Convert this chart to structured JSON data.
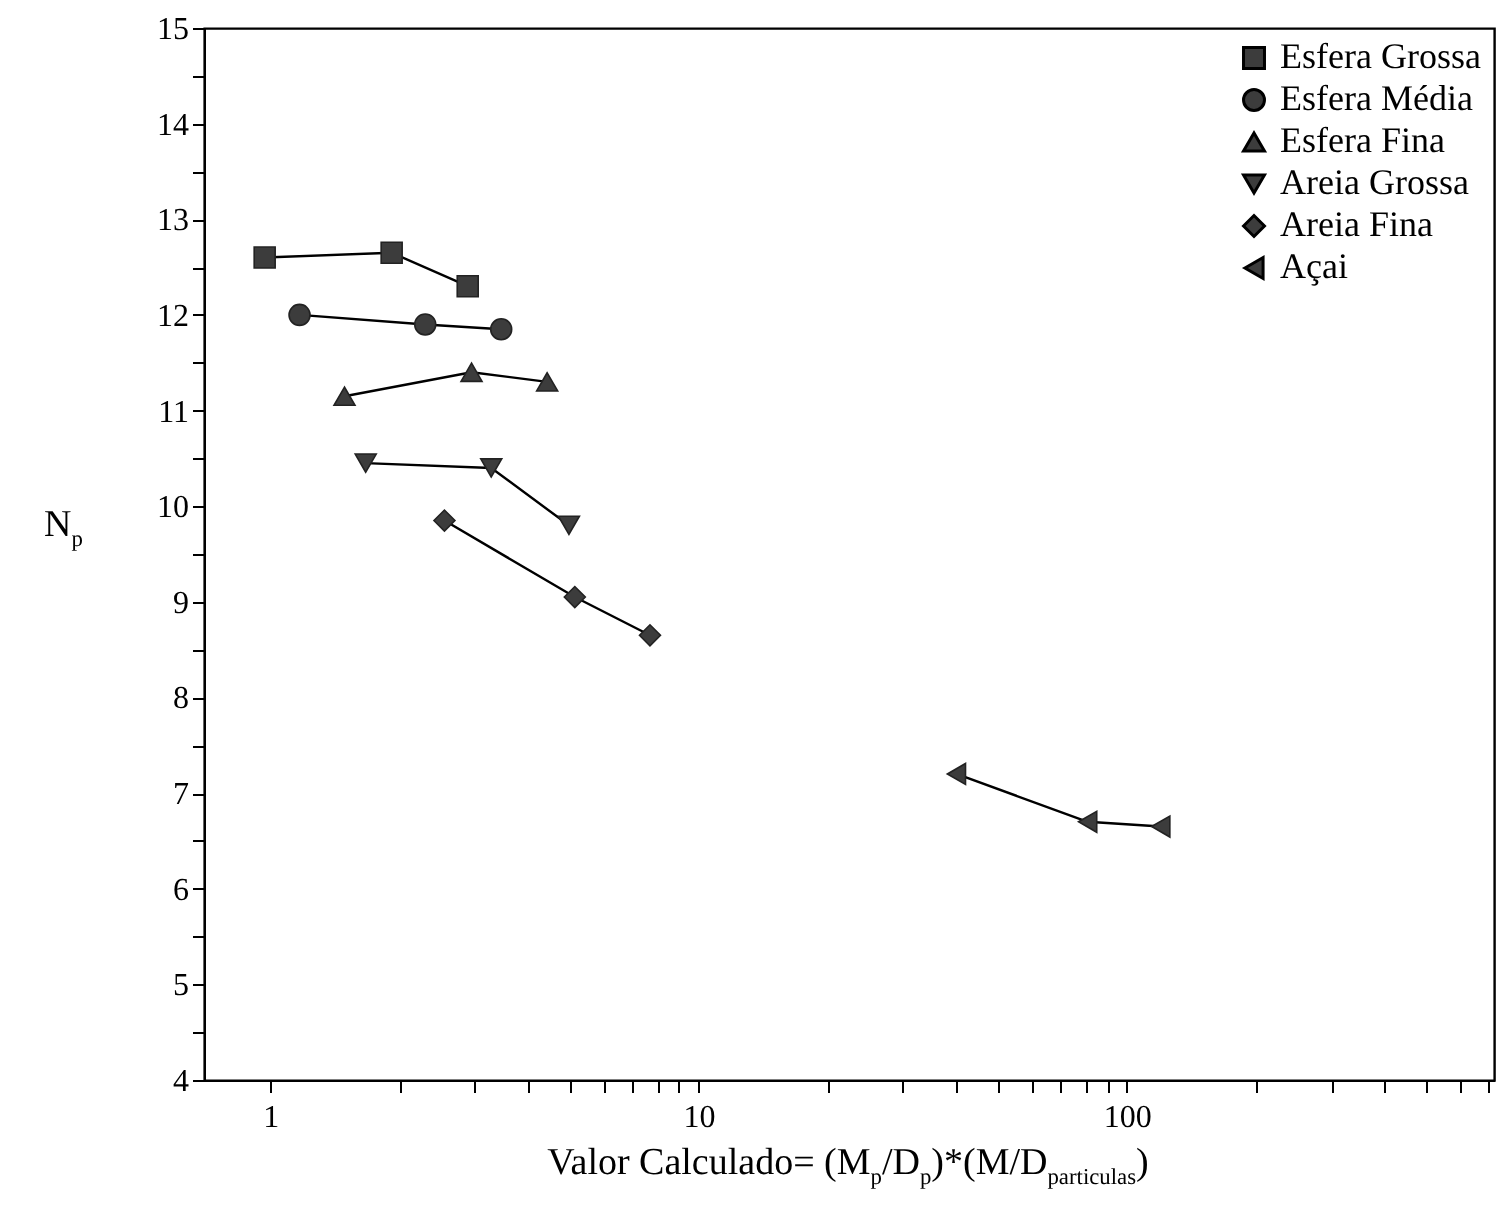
{
  "chart_data": {
    "type": "line",
    "xlabel": "Valor Calculado= (M$_{p}$/D$_{p}$)*(M/D$_{particulas}$)",
    "ylabel": "N$_{p}$",
    "log": "x",
    "grid": false,
    "legend": "top right",
    "xlim": [
      0.7,
      720
    ],
    "ylim": [
      4,
      15
    ],
    "xticks": [
      1,
      {
        "value": 2,
        "label": null
      },
      {
        "value": 3,
        "label": null
      },
      {
        "value": 4,
        "label": null
      },
      {
        "value": 5,
        "label": null
      },
      {
        "value": 6,
        "label": null
      },
      {
        "value": 7,
        "label": null
      },
      {
        "value": 8,
        "label": null
      },
      {
        "value": 9,
        "label": null
      },
      10,
      {
        "value": 20,
        "label": null
      },
      {
        "value": 30,
        "label": null
      },
      {
        "value": 40,
        "label": null
      },
      {
        "value": 50,
        "label": null
      },
      {
        "value": 60,
        "label": null
      },
      {
        "value": 70,
        "label": null
      },
      {
        "value": 80,
        "label": null
      },
      {
        "value": 90,
        "label": null
      },
      100,
      {
        "value": 200,
        "label": null
      },
      {
        "value": 300,
        "label": null
      },
      {
        "value": 400,
        "label": null
      },
      {
        "value": 500,
        "label": null
      },
      {
        "value": 600,
        "label": null
      },
      {
        "value": 700,
        "label": null
      }
    ],
    "yticks": [
      4,
      {
        "value": 4.5,
        "label": null
      },
      5,
      {
        "value": 5.5,
        "label": null
      },
      6,
      {
        "value": 6.5,
        "label": null
      },
      7,
      {
        "value": 7.5,
        "label": null
      },
      8,
      {
        "value": 8.5,
        "label": null
      },
      9,
      {
        "value": 9.5,
        "label": null
      },
      10,
      {
        "value": 10.5,
        "label": null
      },
      11,
      {
        "value": 11.5,
        "label": null
      },
      12,
      {
        "value": 12.5,
        "label": null
      },
      13,
      {
        "value": 13.5,
        "label": null
      },
      14,
      {
        "value": 14.5,
        "label": null
      },
      15
    ],
    "series": [
      {
        "name": "Esfera Grossa",
        "color": "#3c3c3c",
        "marker": "square",
        "x": [
          0.97,
          1.92,
          2.89
        ],
        "values": [
          12.6,
          12.65,
          12.3
        ]
      },
      {
        "name": "Esfera Média",
        "color": "#3c3c3c",
        "marker": "circle",
        "x": [
          1.17,
          2.3,
          3.46
        ],
        "values": [
          12.0,
          11.9,
          11.85
        ]
      },
      {
        "name": "Esfera Fina",
        "color": "#3c3c3c",
        "marker": "triangle",
        "x": [
          1.49,
          2.95,
          4.43
        ],
        "values": [
          11.15,
          11.4,
          11.3
        ]
      },
      {
        "name": "Areia Grossa",
        "color": "#3c3c3c",
        "marker": "triangle-down",
        "x": [
          1.67,
          3.28,
          4.98
        ],
        "values": [
          10.45,
          10.4,
          9.8
        ]
      },
      {
        "name": "Areia Fina",
        "color": "#3c3c3c",
        "marker": "diamond",
        "x": [
          2.55,
          5.14,
          7.7
        ],
        "values": [
          9.85,
          9.05,
          8.65
        ]
      },
      {
        "name": "Açai",
        "color": "#3c3c3c",
        "marker": "triangle-left",
        "x": [
          40,
          81,
          120
        ],
        "values": [
          7.2,
          6.7,
          6.65
        ]
      }
    ]
  }
}
